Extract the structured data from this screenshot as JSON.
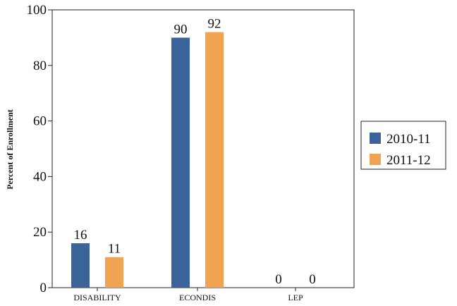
{
  "chart_data": {
    "type": "bar",
    "title": "",
    "xlabel": "",
    "ylabel": "Percent of Enrollment",
    "categories": [
      "DISABILITY",
      "ECONDIS",
      "LEP"
    ],
    "series": [
      {
        "name": "2010-11",
        "values": [
          16,
          90,
          0
        ],
        "color": "#3a6399"
      },
      {
        "name": "2011-12",
        "values": [
          11,
          92,
          0
        ],
        "color": "#f0a452"
      }
    ],
    "ylim": [
      0,
      100
    ],
    "yticks": [
      0,
      20,
      40,
      60,
      80,
      100
    ],
    "data_labels": [
      [
        "16",
        "90",
        "0"
      ],
      [
        "11",
        "92",
        "0"
      ]
    ],
    "grid": false,
    "legend_position": "right"
  }
}
